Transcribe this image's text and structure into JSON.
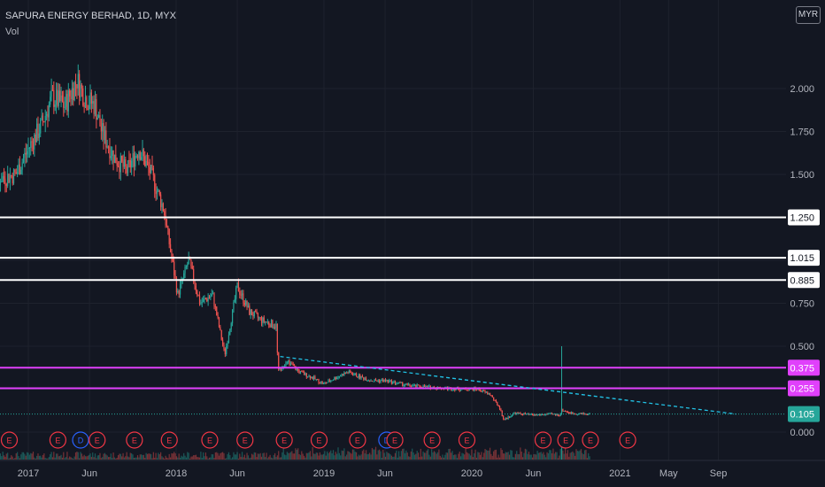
{
  "header": {
    "symbol_title": "SAPURA ENERGY BERHAD, 1D, MYX",
    "indicator": "Vol",
    "currency": "MYR"
  },
  "colors": {
    "background": "#131722",
    "up": "#26a69a",
    "down": "#ef5350",
    "grid": "#1e222d",
    "horizontal_line": "#ffffff",
    "magenta_line": "#e040fb",
    "trendline": "#22c3e6",
    "last_price": "#26a69a",
    "event_circle": "#f23645",
    "dividend_circle": "#2962ff"
  },
  "chart_data": {
    "type": "candlestick",
    "title": "SAPURA ENERGY BERHAD, 1D, MYX",
    "y_ticks": [
      "2.000",
      "1.750",
      "1.500",
      "0.750",
      "0.500",
      "0.000"
    ],
    "y_range": [
      -0.08,
      2.25
    ],
    "x_ticks": [
      "2017",
      "Jun",
      "2018",
      "Jun",
      "2019",
      "Jun",
      "2020",
      "Jun",
      "2021",
      "May",
      "Sep"
    ],
    "price_path": [
      [
        "2016-08-01",
        1.55
      ],
      [
        "2016-09-01",
        1.62
      ],
      [
        "2016-10-01",
        1.5
      ],
      [
        "2016-11-01",
        1.48
      ],
      [
        "2016-12-01",
        1.5
      ],
      [
        "2017-01-01",
        1.65
      ],
      [
        "2017-02-01",
        1.78
      ],
      [
        "2017-03-01",
        1.95
      ],
      [
        "2017-04-01",
        1.9
      ],
      [
        "2017-05-01",
        2.05
      ],
      [
        "2017-05-20",
        1.95
      ],
      [
        "2017-06-15",
        1.9
      ],
      [
        "2017-07-01",
        1.75
      ],
      [
        "2017-08-01",
        1.6
      ],
      [
        "2017-09-01",
        1.52
      ],
      [
        "2017-10-01",
        1.65
      ],
      [
        "2017-11-01",
        1.5
      ],
      [
        "2017-12-01",
        1.3
      ],
      [
        "2018-01-05",
        0.8
      ],
      [
        "2018-02-01",
        1.0
      ],
      [
        "2018-03-01",
        0.75
      ],
      [
        "2018-04-01",
        0.8
      ],
      [
        "2018-05-01",
        0.45
      ],
      [
        "2018-06-01",
        0.85
      ],
      [
        "2018-07-01",
        0.7
      ],
      [
        "2018-08-01",
        0.65
      ],
      [
        "2018-09-05",
        0.62
      ],
      [
        "2018-09-10",
        0.35
      ],
      [
        "2018-10-01",
        0.42
      ],
      [
        "2018-11-01",
        0.35
      ],
      [
        "2018-12-01",
        0.32
      ],
      [
        "2019-01-01",
        0.28
      ],
      [
        "2019-02-01",
        0.32
      ],
      [
        "2019-03-01",
        0.35
      ],
      [
        "2019-04-01",
        0.32
      ],
      [
        "2019-05-01",
        0.3
      ],
      [
        "2019-06-01",
        0.3
      ],
      [
        "2019-08-01",
        0.27
      ],
      [
        "2019-10-01",
        0.26
      ],
      [
        "2019-12-01",
        0.25
      ],
      [
        "2020-01-15",
        0.25
      ],
      [
        "2020-02-15",
        0.22
      ],
      [
        "2020-03-10",
        0.14
      ],
      [
        "2020-03-20",
        0.07
      ],
      [
        "2020-04-15",
        0.11
      ],
      [
        "2020-06-01",
        0.1
      ],
      [
        "2020-07-15",
        0.105
      ],
      [
        "2020-08-05",
        0.1
      ],
      [
        "2020-08-10",
        0.13
      ],
      [
        "2020-09-01",
        0.11
      ],
      [
        "2020-10-20",
        0.105
      ]
    ],
    "spike": {
      "date": "2020-08-10",
      "high": 0.5
    },
    "horizontal_levels": [
      {
        "value": 1.25,
        "label": "1.250",
        "color": "#ffffff"
      },
      {
        "value": 1.015,
        "label": "1.015",
        "color": "#ffffff"
      },
      {
        "value": 0.885,
        "label": "0.885",
        "color": "#ffffff"
      },
      {
        "value": 0.375,
        "label": "0.375",
        "color": "#e040fb"
      },
      {
        "value": 0.255,
        "label": "0.255",
        "color": "#e040fb"
      }
    ],
    "trendline": {
      "from": [
        "2018-09-15",
        0.44
      ],
      "to": [
        "2021-10-15",
        0.105
      ]
    },
    "last_price": {
      "value": 0.105,
      "label": "0.105"
    },
    "events": [
      {
        "date": "2016-09-05",
        "label": "E"
      },
      {
        "date": "2016-11-15",
        "label": "E"
      },
      {
        "date": "2017-03-15",
        "label": "E"
      },
      {
        "date": "2017-05-10",
        "label": "D"
      },
      {
        "date": "2017-06-20",
        "label": "E"
      },
      {
        "date": "2017-09-20",
        "label": "E"
      },
      {
        "date": "2017-12-15",
        "label": "E"
      },
      {
        "date": "2018-03-25",
        "label": "E"
      },
      {
        "date": "2018-06-20",
        "label": "E"
      },
      {
        "date": "2018-09-25",
        "label": "E"
      },
      {
        "date": "2018-12-20",
        "label": "E"
      },
      {
        "date": "2019-03-25",
        "label": "E"
      },
      {
        "date": "2019-06-05",
        "label": "D"
      },
      {
        "date": "2019-06-25",
        "label": "E"
      },
      {
        "date": "2019-09-25",
        "label": "E"
      },
      {
        "date": "2019-12-20",
        "label": "E"
      },
      {
        "date": "2020-06-25",
        "label": "E"
      },
      {
        "date": "2020-08-20",
        "label": "E"
      },
      {
        "date": "2020-10-20",
        "label": "E"
      },
      {
        "date": "2021-01-20",
        "label": "E"
      }
    ]
  }
}
